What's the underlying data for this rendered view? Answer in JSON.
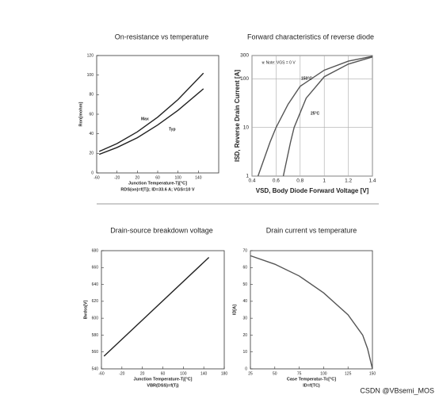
{
  "chart_data": [
    {
      "type": "line",
      "title": "On-resistance vs temperature",
      "xlabel": "Junction Temperature-Tj[°C]",
      "ylabel": "Ron[mohm]",
      "caption": "RDS(on)=f(Tj); ID=33.6 A; VGS=10 V",
      "xlim": [
        -60,
        180
      ],
      "xticks": [
        -60,
        -20,
        20,
        60,
        100,
        140
      ],
      "ylim": [
        0,
        120
      ],
      "yticks": [
        0,
        20,
        40,
        60,
        80,
        100,
        120
      ],
      "grid": false,
      "series": [
        {
          "name": "Max",
          "color": "#222222",
          "x": [
            -55,
            -20,
            20,
            60,
            100,
            150
          ],
          "values": [
            22,
            30,
            42,
            57,
            75,
            102
          ]
        },
        {
          "name": "Typ",
          "color": "#222222",
          "x": [
            -55,
            -20,
            20,
            60,
            100,
            150
          ],
          "values": [
            19,
            26,
            36,
            49,
            64,
            86
          ]
        }
      ]
    },
    {
      "type": "line",
      "title": "Forward characteristics of reverse diode",
      "xlabel": "VSD, Body Diode Forward Voltage [V]",
      "ylabel": "ISD, Reverse Drain Current [A]",
      "note": "※ Note: VGS = 0 V",
      "xlim": [
        0.4,
        1.4
      ],
      "xticks": [
        0.4,
        0.6,
        0.8,
        1,
        1.2,
        1.4
      ],
      "ylim": [
        1,
        300
      ],
      "yticks": [
        1,
        10,
        100,
        300
      ],
      "log_y": true,
      "grid": true,
      "series": [
        {
          "name": "150°C",
          "color": "#555555",
          "x": [
            0.45,
            0.55,
            0.6,
            0.7,
            0.8,
            1.0,
            1.2,
            1.4
          ],
          "values": [
            1,
            5,
            10,
            30,
            70,
            150,
            230,
            290
          ]
        },
        {
          "name": "25°C",
          "color": "#555555",
          "x": [
            0.66,
            0.72,
            0.75,
            0.85,
            1.0,
            1.2,
            1.4
          ],
          "values": [
            1,
            5,
            10,
            40,
            110,
            200,
            280
          ]
        }
      ]
    },
    {
      "type": "line",
      "title": "Drain-source breakdown voltage",
      "xlabel": "Junction Temperature-Tj[°C]",
      "ylabel": "Bvdss[V]",
      "caption": "VBR(DSS)=f(Tj)",
      "xlim": [
        -60,
        180
      ],
      "xticks": [
        -60,
        -20,
        20,
        60,
        100,
        140,
        180
      ],
      "ylim": [
        540,
        680
      ],
      "yticks": [
        540,
        560,
        580,
        600,
        620,
        640,
        660,
        680
      ],
      "grid": false,
      "series": [
        {
          "color": "#222222",
          "x": [
            -55,
            150
          ],
          "values": [
            555,
            672
          ]
        }
      ]
    },
    {
      "type": "line",
      "title": "Drain current vs temperature",
      "xlabel": "Case Temperatur-Tc[°C]",
      "ylabel": "ID[A]",
      "caption": "ID=f(TC)",
      "xlim": [
        25,
        150
      ],
      "xticks": [
        25,
        50,
        75,
        100,
        125,
        150
      ],
      "ylim": [
        0,
        70
      ],
      "yticks": [
        0,
        10,
        20,
        30,
        40,
        50,
        60,
        70
      ],
      "grid": false,
      "series": [
        {
          "color": "#555555",
          "x": [
            25,
            50,
            75,
            100,
            125,
            140,
            145,
            150
          ],
          "values": [
            67,
            62,
            55,
            45,
            32,
            20,
            12,
            0
          ]
        }
      ]
    }
  ],
  "watermark": "CSDN @VBsemi_MOS"
}
